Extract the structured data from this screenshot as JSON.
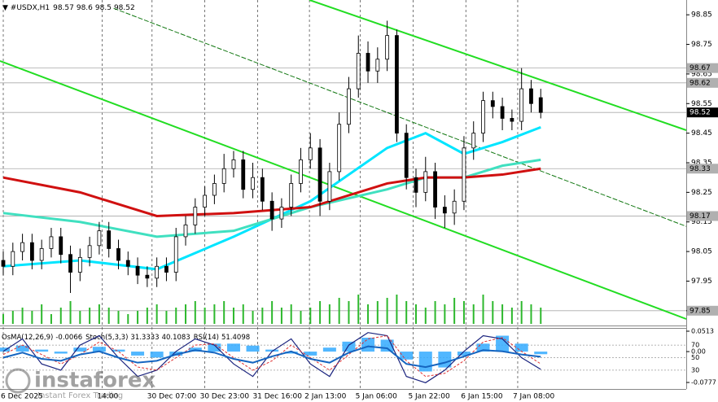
{
  "chart_data": {
    "type": "candlestick",
    "symbol": "#USDX,H1",
    "xlim": [
      -0.34,
      71.16
    ],
    "ylim": [
      97.8,
      98.9
    ],
    "yticks": [
      98.85,
      98.75,
      98.65,
      98.55,
      98.45,
      98.35,
      98.25,
      98.15,
      98.05,
      97.95,
      97.85
    ],
    "xticks": [
      {
        "value": 0,
        "label": "6 Dec 2025"
      },
      {
        "value": 10.3,
        "label": "14:00"
      },
      {
        "value": 15.5,
        "label": "30 Dec 07:00"
      },
      {
        "value": 21.0,
        "label": "30 Dec 23:00"
      },
      {
        "value": 26.5,
        "label": "31 Dec 16:00"
      },
      {
        "value": 31.9,
        "label": "2 Jan 13:00"
      },
      {
        "value": 37.2,
        "label": "5 Jan 06:00"
      },
      {
        "value": 42.7,
        "label": "5 Jan 22:00"
      },
      {
        "value": 48.2,
        "label": "6 Jan 15:00"
      },
      {
        "value": 53.6,
        "label": "7 Jan 08:00"
      }
    ],
    "grid": true,
    "color": "#000000",
    "open": [
      98.02,
      98.0,
      98.05,
      98.08,
      98.02,
      98.06,
      98.1,
      98.04,
      97.98,
      98.03,
      98.07,
      98.12,
      98.06,
      98.02,
      98.0,
      97.97,
      97.96,
      98.0,
      97.98,
      98.1,
      98.14,
      98.2,
      98.24,
      98.28,
      98.33,
      98.36,
      98.26,
      98.3,
      98.22,
      98.16,
      98.2,
      98.28,
      98.36,
      98.4,
      98.22,
      98.32,
      98.48,
      98.6,
      98.72,
      98.66,
      98.7,
      98.78,
      98.45,
      98.3,
      98.25,
      98.32,
      98.2,
      98.18,
      98.22,
      98.4,
      98.45,
      98.56,
      98.54,
      98.5,
      98.49,
      98.6,
      98.57
    ],
    "high": [
      98.05,
      98.08,
      98.11,
      98.11,
      98.09,
      98.13,
      98.13,
      98.07,
      98.06,
      98.1,
      98.15,
      98.15,
      98.09,
      98.05,
      98.03,
      98.0,
      98.03,
      98.03,
      98.13,
      98.17,
      98.23,
      98.27,
      98.31,
      98.38,
      98.39,
      98.39,
      98.35,
      98.33,
      98.25,
      98.23,
      98.31,
      98.4,
      98.45,
      98.43,
      98.35,
      98.52,
      98.64,
      98.78,
      98.76,
      98.74,
      98.83,
      98.8,
      98.48,
      98.33,
      98.37,
      98.35,
      98.24,
      98.26,
      98.44,
      98.49,
      98.59,
      98.59,
      98.57,
      98.53,
      98.67,
      98.63,
      98.6
    ],
    "low": [
      97.97,
      97.97,
      98.02,
      97.99,
      97.99,
      98.03,
      98.01,
      97.91,
      97.95,
      98.0,
      98.04,
      98.03,
      97.99,
      97.97,
      97.94,
      97.93,
      97.93,
      97.95,
      97.95,
      98.07,
      98.11,
      98.17,
      98.21,
      98.25,
      98.3,
      98.23,
      98.23,
      98.19,
      98.12,
      98.13,
      98.17,
      98.25,
      98.33,
      98.17,
      98.19,
      98.29,
      98.45,
      98.57,
      98.62,
      98.62,
      98.66,
      98.42,
      98.26,
      98.2,
      98.22,
      98.16,
      98.13,
      98.14,
      98.19,
      98.36,
      98.42,
      98.5,
      98.46,
      98.46,
      98.46,
      98.52,
      98.5
    ],
    "close": [
      98.0,
      98.05,
      98.08,
      98.02,
      98.06,
      98.1,
      98.04,
      97.98,
      98.03,
      98.07,
      98.12,
      98.06,
      98.02,
      98.0,
      97.97,
      97.96,
      98.0,
      97.98,
      98.1,
      98.14,
      98.2,
      98.24,
      98.28,
      98.33,
      98.36,
      98.26,
      98.3,
      98.22,
      98.16,
      98.2,
      98.28,
      98.36,
      98.4,
      98.22,
      98.32,
      98.48,
      98.6,
      98.72,
      98.66,
      98.7,
      98.78,
      98.45,
      98.3,
      98.25,
      98.32,
      98.2,
      98.18,
      98.22,
      98.4,
      98.45,
      98.56,
      98.54,
      98.5,
      98.49,
      98.6,
      98.55,
      98.52
    ],
    "volume": {
      "color": "#2db82d",
      "values": [
        3,
        4,
        5,
        4,
        6,
        3,
        5,
        7,
        4,
        5,
        6,
        5,
        4,
        3,
        4,
        5,
        6,
        4,
        5,
        6,
        7,
        5,
        6,
        7,
        5,
        6,
        4,
        5,
        7,
        5,
        6,
        4,
        5,
        7,
        6,
        8,
        7,
        9,
        6,
        7,
        8,
        9,
        7,
        6,
        5,
        7,
        6,
        8,
        7,
        6,
        9,
        7,
        6,
        5,
        7,
        6,
        5
      ]
    },
    "lines": [
      {
        "color": "#00e5ff",
        "x": [
          0,
          8,
          16,
          24,
          32,
          40,
          44,
          48,
          52,
          56
        ],
        "values": [
          98.0,
          98.02,
          97.99,
          98.1,
          98.22,
          98.4,
          98.45,
          98.38,
          98.42,
          98.47
        ]
      },
      {
        "color": "#40e0c0",
        "x": [
          0,
          8,
          16,
          24,
          32,
          40,
          44,
          48,
          52,
          56
        ],
        "values": [
          98.18,
          98.15,
          98.1,
          98.12,
          98.2,
          98.26,
          98.3,
          98.3,
          98.34,
          98.36
        ]
      },
      {
        "color": "#d01010",
        "x": [
          0,
          8,
          16,
          24,
          32,
          40,
          44,
          48,
          52,
          56
        ],
        "values": [
          98.3,
          98.25,
          98.17,
          98.18,
          98.2,
          98.28,
          98.3,
          98.3,
          98.31,
          98.33
        ]
      }
    ],
    "trendlines": [
      {
        "color": "#22dd22",
        "x": [
          31.9,
          71.16
        ],
        "values": [
          98.9,
          98.46
        ]
      },
      {
        "color": "#22dd22",
        "x": [
          -0.34,
          71.16
        ],
        "values": [
          98.694,
          97.822
        ]
      },
      {
        "color": "#117711",
        "x": [
          11.5,
          71.16
        ],
        "values": [
          98.872,
          98.135
        ]
      }
    ],
    "levels": [
      98.67,
      98.62,
      98.52,
      98.33,
      98.17,
      97.85
    ],
    "oscillators": {
      "x": [
        0,
        2,
        4,
        6,
        8,
        10,
        12,
        14,
        16,
        18,
        20,
        22,
        24,
        26,
        28,
        30,
        32,
        34,
        36,
        38,
        40,
        42,
        44,
        46,
        48,
        50,
        52,
        54,
        56
      ],
      "osma_name": "OsMA(12,26,9)",
      "osma_color": "#33aaff",
      "osma_ylim": [
        -0.0777,
        0.0513
      ],
      "osma_ticks": [
        0.0513,
        {
          "value": 0,
          "label": "0.00"
        },
        -0.0777
      ],
      "osma": [
        0.01,
        0.015,
        0.005,
        -0.005,
        0.01,
        0.012,
        0.005,
        -0.01,
        -0.015,
        -0.01,
        0.01,
        0.02,
        0.02,
        0.015,
        0.005,
        -0.005,
        -0.01,
        0.01,
        0.025,
        0.035,
        0.03,
        -0.02,
        -0.05,
        -0.04,
        -0.01,
        0.02,
        0.04,
        0.02,
        -0.0066
      ],
      "stoch_name": "Stoch(5,3,3)",
      "osc_ylim": [
        0,
        100
      ],
      "osc_ticks": [
        70,
        50,
        30
      ],
      "stoch_main": {
        "color": "#1a237e",
        "values": [
          60,
          80,
          40,
          30,
          70,
          85,
          50,
          20,
          30,
          60,
          80,
          70,
          40,
          20,
          60,
          80,
          40,
          20,
          70,
          90,
          85,
          20,
          10,
          30,
          60,
          85,
          80,
          50,
          31.3333
        ]
      },
      "stoch_signal": {
        "color": "#e03030",
        "values": [
          55,
          70,
          55,
          40,
          55,
          75,
          60,
          35,
          30,
          50,
          70,
          72,
          50,
          30,
          45,
          70,
          50,
          30,
          55,
          80,
          85,
          45,
          20,
          25,
          45,
          75,
          82,
          60,
          40.1083
        ]
      },
      "rsi_name": "RSI(14)",
      "rsi": {
        "color": "#1565c0",
        "values": [
          50,
          58,
          48,
          45,
          55,
          60,
          50,
          42,
          45,
          55,
          62,
          58,
          48,
          42,
          52,
          60,
          48,
          42,
          58,
          68,
          65,
          40,
          35,
          42,
          52,
          62,
          60,
          55,
          51.4098
        ]
      }
    },
    "watermark": {
      "name": "instaforex",
      "tagline": "Instant Forex Trading"
    }
  }
}
